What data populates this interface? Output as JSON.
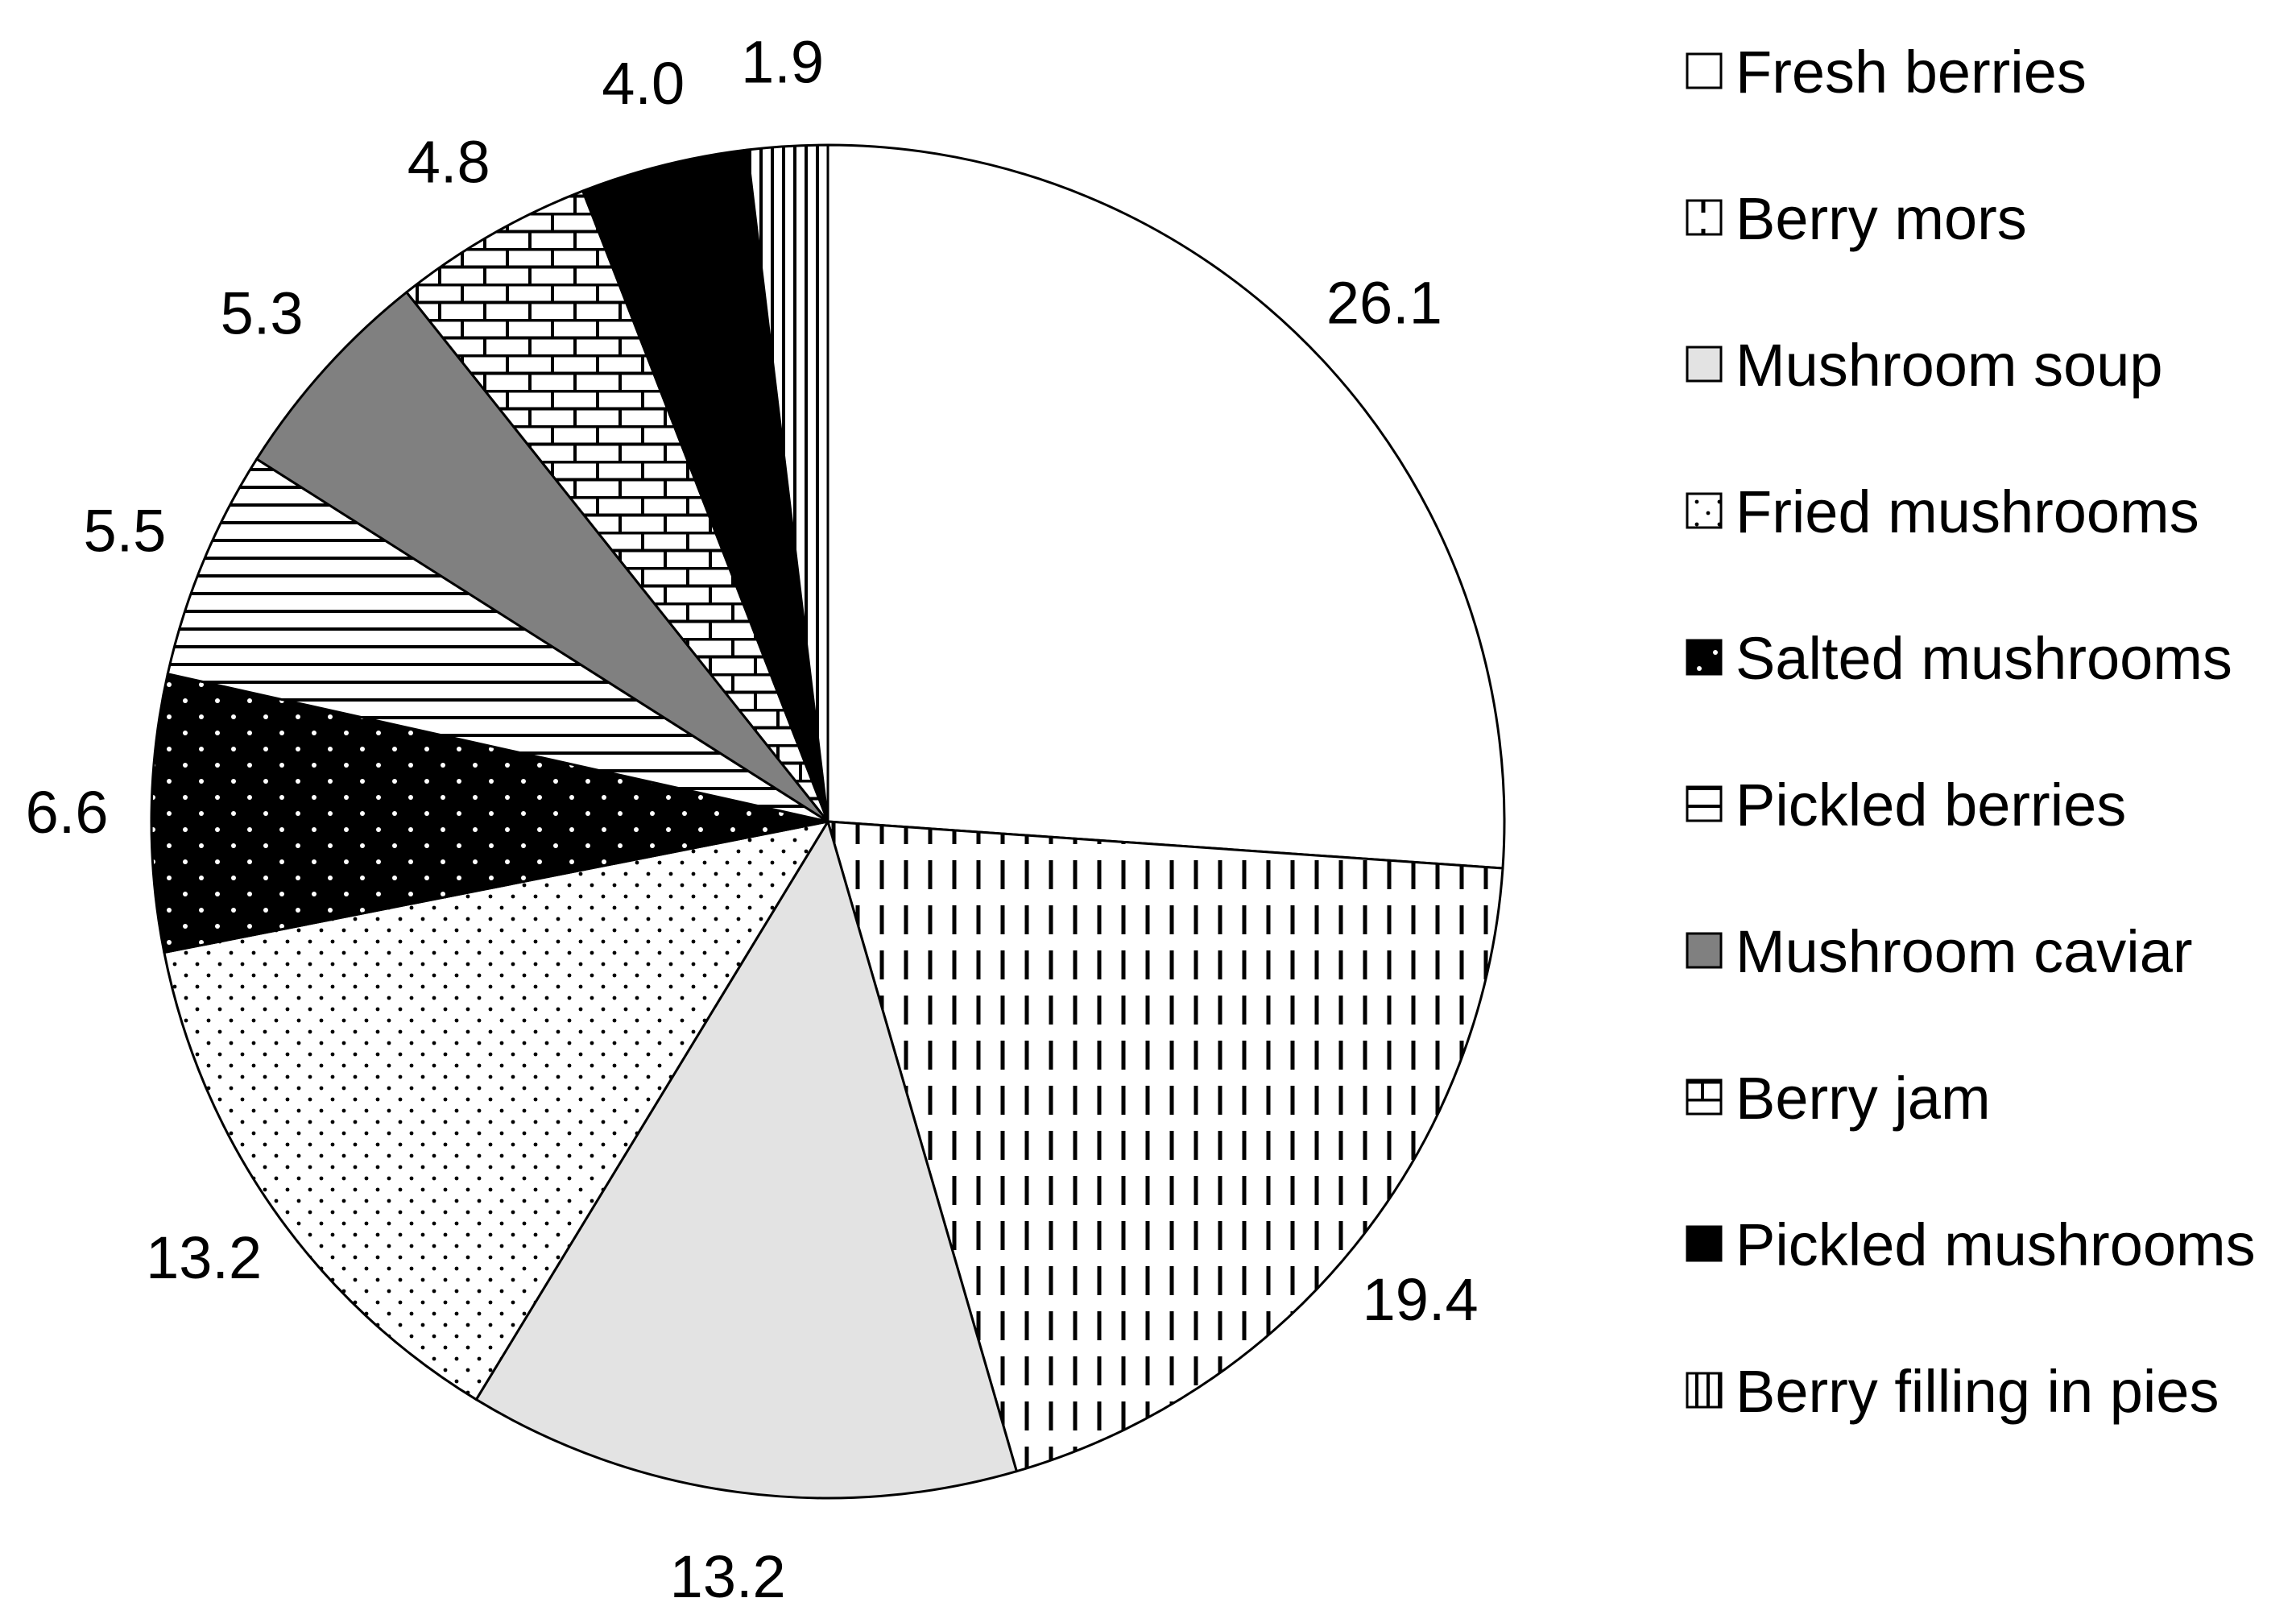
{
  "chart_data": {
    "type": "pie",
    "title": "",
    "slices": [
      {
        "label": "Fresh berries",
        "value": 26.1,
        "display": "26.1",
        "pattern": "white",
        "color": "#ffffff"
      },
      {
        "label": "Berry mors",
        "value": 19.4,
        "display": "19.4",
        "pattern": "dashed-vertical",
        "color": "#ffffff"
      },
      {
        "label": "Mushroom soup",
        "value": 13.2,
        "display": "13.2",
        "pattern": "solid-light-gray",
        "color": "#e3e3e3"
      },
      {
        "label": "Fried mushrooms",
        "value": 13.2,
        "display": "13.2",
        "pattern": "sparse-dots",
        "color": "#ffffff"
      },
      {
        "label": "Salted mushrooms",
        "value": 6.6,
        "display": "6.6",
        "pattern": "white-dots-on-black",
        "color": "#000000"
      },
      {
        "label": "Pickled berries",
        "value": 5.5,
        "display": "5.5",
        "pattern": "horizontal-lines",
        "color": "#ffffff"
      },
      {
        "label": "Mushroom caviar",
        "value": 5.3,
        "display": "5.3",
        "pattern": "solid-dark-gray",
        "color": "#808080"
      },
      {
        "label": "Berry jam",
        "value": 4.8,
        "display": "4.8",
        "pattern": "bricks",
        "color": "#ffffff"
      },
      {
        "label": "Pickled mushrooms",
        "value": 4.0,
        "display": "4.0",
        "pattern": "solid-black",
        "color": "#000000"
      },
      {
        "label": "Berry filling in pies",
        "value": 1.9,
        "display": "1.9",
        "pattern": "vertical-lines",
        "color": "#ffffff"
      }
    ],
    "legend_position": "right",
    "start_angle": "12 o'clock",
    "direction": "clockwise"
  }
}
